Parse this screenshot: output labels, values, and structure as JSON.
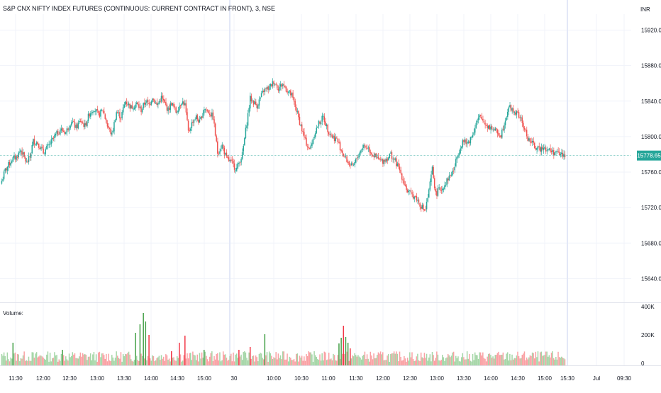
{
  "header": {
    "title": "S&P CNX NIFTY INDEX FUTURES (CONTINUOUS: CURRENT CONTRACT IN FRONT), 3, NSE",
    "currency": "INR"
  },
  "volume_pane": {
    "label": "Volume:"
  },
  "colors": {
    "up": "#26a69a",
    "down": "#ef5350",
    "vol_up": "#a5d6a7",
    "vol_down": "#faa1a4",
    "vol_up_strong": "#43a047",
    "vol_down_strong": "#f23645",
    "grid": "#f0f3fa",
    "session_line": "#e3e8f7",
    "last_price_bg": "#26a69a"
  },
  "chart_data": [
    {
      "type": "candlestick",
      "title": "S&P CNX NIFTY INDEX FUTURES (CONTINUOUS: CURRENT CONTRACT IN FRONT), 3, NSE",
      "x_tick_labels": [
        "11:30",
        "12:00",
        "12:30",
        "13:00",
        "13:30",
        "14:00",
        "14:30",
        "15:00",
        "30",
        "10:00",
        "10:30",
        "11:00",
        "11:30",
        "12:00",
        "12:30",
        "13:00",
        "13:30",
        "14:00",
        "14:30",
        "15:00",
        "15:30",
        "Jul",
        "09:30"
      ],
      "y_ticks": [
        15640,
        15680,
        15720,
        15760,
        15800,
        15840,
        15880,
        15920
      ],
      "y_tick_labels": [
        "15640.00",
        "15680.00",
        "15720.00",
        "15760.00",
        "15800.00",
        "15840.00",
        "15880.00",
        "15920.00"
      ],
      "ylim": [
        15614,
        15938
      ],
      "last_price": 15778.65,
      "last_price_label": "15778.65",
      "anchors": [
        [
          0,
          15750
        ],
        [
          3,
          15762
        ],
        [
          6,
          15768
        ],
        [
          9,
          15774
        ],
        [
          13,
          15777
        ],
        [
          17,
          15785
        ],
        [
          22,
          15770
        ],
        [
          25,
          15777
        ],
        [
          28,
          15795
        ],
        [
          32,
          15793
        ],
        [
          37,
          15782
        ],
        [
          42,
          15790
        ],
        [
          47,
          15800
        ],
        [
          52,
          15808
        ],
        [
          57,
          15805
        ],
        [
          62,
          15818
        ],
        [
          66,
          15810
        ],
        [
          70,
          15818
        ],
        [
          74,
          15812
        ],
        [
          78,
          15826
        ],
        [
          82,
          15832
        ],
        [
          86,
          15824
        ],
        [
          90,
          15830
        ],
        [
          94,
          15812
        ],
        [
          98,
          15802
        ],
        [
          102,
          15828
        ],
        [
          106,
          15822
        ],
        [
          110,
          15840
        ],
        [
          115,
          15833
        ],
        [
          120,
          15837
        ],
        [
          124,
          15830
        ],
        [
          128,
          15840
        ],
        [
          131,
          15836
        ],
        [
          134,
          15845
        ],
        [
          138,
          15835
        ],
        [
          142,
          15844
        ],
        [
          148,
          15830
        ],
        [
          151,
          15838
        ],
        [
          155,
          15828
        ],
        [
          160,
          15840
        ],
        [
          163,
          15836
        ],
        [
          166,
          15805
        ],
        [
          170,
          15818
        ],
        [
          173,
          15822
        ],
        [
          176,
          15816
        ],
        [
          180,
          15832
        ],
        [
          184,
          15828
        ],
        [
          188,
          15822
        ],
        [
          192,
          15782
        ],
        [
          196,
          15790
        ],
        [
          200,
          15775
        ],
        [
          205,
          15770
        ],
        [
          207,
          15766
        ],
        [
          209,
          15764
        ],
        [
          214,
          15780
        ],
        [
          221,
          15843
        ],
        [
          227,
          15835
        ],
        [
          233,
          15852
        ],
        [
          238,
          15855
        ],
        [
          242,
          15862
        ],
        [
          246,
          15855
        ],
        [
          250,
          15859
        ],
        [
          254,
          15852
        ],
        [
          258,
          15846
        ],
        [
          262,
          15830
        ],
        [
          266,
          15812
        ],
        [
          270,
          15795
        ],
        [
          274,
          15785
        ],
        [
          278,
          15803
        ],
        [
          282,
          15815
        ],
        [
          286,
          15822
        ],
        [
          290,
          15808
        ],
        [
          294,
          15800
        ],
        [
          298,
          15797
        ],
        [
          302,
          15785
        ],
        [
          306,
          15775
        ],
        [
          310,
          15768
        ],
        [
          312,
          15765
        ],
        [
          314,
          15770
        ],
        [
          318,
          15782
        ],
        [
          322,
          15790
        ],
        [
          326,
          15787
        ],
        [
          330,
          15780
        ],
        [
          334,
          15775
        ],
        [
          338,
          15772
        ],
        [
          342,
          15775
        ],
        [
          346,
          15780
        ],
        [
          350,
          15772
        ],
        [
          354,
          15762
        ],
        [
          358,
          15748
        ],
        [
          361,
          15738
        ],
        [
          364,
          15735
        ],
        [
          368,
          15732
        ],
        [
          371,
          15726
        ],
        [
          375,
          15718
        ],
        [
          377,
          15718
        ],
        [
          380,
          15738
        ],
        [
          383,
          15764
        ],
        [
          386,
          15735
        ],
        [
          389,
          15740
        ],
        [
          392,
          15742
        ],
        [
          395,
          15748
        ],
        [
          398,
          15755
        ],
        [
          402,
          15762
        ],
        [
          406,
          15782
        ],
        [
          410,
          15795
        ],
        [
          414,
          15792
        ],
        [
          418,
          15800
        ],
        [
          422,
          15815
        ],
        [
          425,
          15822
        ],
        [
          428,
          15818
        ],
        [
          432,
          15812
        ],
        [
          436,
          15810
        ],
        [
          440,
          15805
        ],
        [
          444,
          15802
        ],
        [
          448,
          15820
        ],
        [
          451,
          15834
        ],
        [
          454,
          15830
        ],
        [
          458,
          15826
        ],
        [
          461,
          15822
        ],
        [
          465,
          15808
        ],
        [
          468,
          15798
        ],
        [
          472,
          15792
        ],
        [
          475,
          15788
        ],
        [
          478,
          15785
        ],
        [
          482,
          15790
        ],
        [
          484,
          15786
        ],
        [
          488,
          15784
        ],
        [
          492,
          15782
        ],
        [
          495,
          15781
        ],
        [
          498,
          15780
        ],
        [
          501,
          15779
        ]
      ],
      "volume": {
        "label": "Volume:",
        "y_tick_labels": [
          "400K",
          "200K",
          "0"
        ],
        "ylim": [
          0,
          400000
        ],
        "spikes": [
          [
            10,
            160000,
            "up"
          ],
          [
            54,
            110000,
            "up"
          ],
          [
            119,
            230000,
            "up"
          ],
          [
            123,
            290000,
            "up"
          ],
          [
            126,
            370000,
            "up"
          ],
          [
            128,
            310000,
            "up"
          ],
          [
            131,
            215000,
            "down"
          ],
          [
            151,
            100000,
            "down"
          ],
          [
            158,
            160000,
            "down"
          ],
          [
            163,
            210000,
            "down"
          ],
          [
            180,
            110000,
            "up"
          ],
          [
            211,
            110000,
            "down"
          ],
          [
            221,
            130000,
            "down"
          ],
          [
            234,
            220000,
            "up"
          ],
          [
            300,
            155000,
            "up"
          ],
          [
            302,
            195000,
            "up"
          ],
          [
            304,
            280000,
            "down"
          ],
          [
            306,
            200000,
            "up"
          ],
          [
            308,
            160000,
            "up"
          ],
          [
            310,
            120000,
            "down"
          ]
        ]
      }
    }
  ]
}
